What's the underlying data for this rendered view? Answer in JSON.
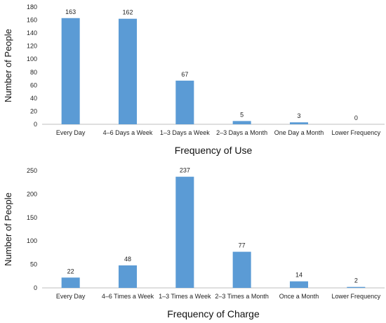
{
  "chart_data": [
    {
      "type": "bar",
      "categories": [
        "Every Day",
        "4–6 Days a Week",
        "1–3 Days a Week",
        "2–3 Days a Month",
        "One Day a Month",
        "Lower Frequency"
      ],
      "values": [
        163,
        162,
        67,
        5,
        3,
        0
      ],
      "title": "",
      "xlabel": "Frequency of Use",
      "ylabel": "Number of People",
      "ylim": [
        0,
        180
      ],
      "yticks": [
        0,
        20,
        40,
        60,
        80,
        100,
        120,
        140,
        160,
        180
      ],
      "color": "#5b9bd5",
      "grid": false,
      "data_labels": true
    },
    {
      "type": "bar",
      "categories": [
        "Every Day",
        "4–6 Times a Week",
        "1–3 Times a Week",
        "2–3 Times a Month",
        "Once a Month",
        "Lower Frequency"
      ],
      "values": [
        22,
        48,
        237,
        77,
        14,
        2
      ],
      "title": "",
      "xlabel": "Frequency of Charge",
      "ylabel": "Number of People",
      "ylim": [
        0,
        250
      ],
      "yticks": [
        0,
        50,
        100,
        150,
        200,
        250
      ],
      "color": "#5b9bd5",
      "grid": false,
      "data_labels": true
    }
  ]
}
